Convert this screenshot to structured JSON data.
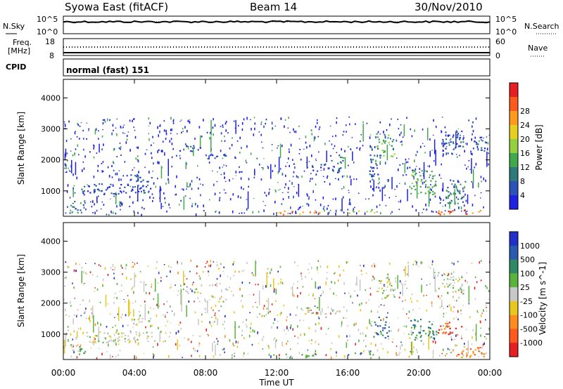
{
  "header": {
    "title": "Syowa East (fitACF)",
    "beam": "Beam 14",
    "date": "30/Nov/2010"
  },
  "strip_sky": {
    "left_label": "N.Sky",
    "right_label": "N.Search",
    "top_tick": "10^5",
    "bottom_tick": "10^0"
  },
  "strip_freq": {
    "left_label_1": "Freq.",
    "left_label_2": "[MHz]",
    "left_top": "18",
    "left_bottom": "8",
    "right_label": "Nave",
    "right_top": "60",
    "right_bottom": "0"
  },
  "cpid": {
    "label": "CPID",
    "mode": "normal (fast) 151"
  },
  "chart_data": [
    {
      "type": "heatmap",
      "panel": "power",
      "ylabel": "Slant Range [km]",
      "ylim": [
        180,
        4600
      ],
      "yticks": [
        "1000",
        "2000",
        "3000",
        "4000"
      ],
      "xlabel": "Time UT",
      "xticks": [
        "00:00",
        "04:00",
        "08:00",
        "12:00",
        "16:00",
        "20:00",
        "00:00"
      ],
      "xlim": [
        0,
        24
      ],
      "colorbar": {
        "label": "Power [dB]",
        "ticks": [
          "4",
          "8",
          "12",
          "16",
          "20",
          "24",
          "28"
        ],
        "colors": [
          "#1e22e0",
          "#2a52b8",
          "#2e7a7a",
          "#41a84c",
          "#94cf3d",
          "#e6cf1e",
          "#ff9a1e",
          "#ff5a1e",
          "#e62020"
        ]
      },
      "regions": [
        {
          "t0": 0.3,
          "t1": 1.2,
          "r0": 300,
          "r1": 700,
          "level": 2
        },
        {
          "t0": 1.0,
          "t1": 5.0,
          "r0": 900,
          "r1": 1250,
          "level": 1
        },
        {
          "t0": 3.5,
          "t1": 5.0,
          "r0": 1300,
          "r1": 1550,
          "level": 1
        },
        {
          "t0": 6.5,
          "t1": 7.6,
          "r0": 2300,
          "r1": 2500,
          "level": 1
        },
        {
          "t0": 8.0,
          "t1": 9.2,
          "r0": 2050,
          "r1": 2250,
          "level": 1
        },
        {
          "t0": 13.5,
          "t1": 15.6,
          "r0": 1650,
          "r1": 1900,
          "level": 1
        },
        {
          "t0": 15.0,
          "t1": 15.8,
          "r0": 1900,
          "r1": 2200,
          "level": 2
        },
        {
          "t0": 17.6,
          "t1": 18.6,
          "r0": 2100,
          "r1": 2900,
          "level": 3
        },
        {
          "t0": 17.2,
          "t1": 17.8,
          "r0": 1300,
          "r1": 2200,
          "level": 1
        },
        {
          "t0": 19.5,
          "t1": 21.0,
          "r0": 900,
          "r1": 1700,
          "level": 3
        },
        {
          "t0": 21.5,
          "t1": 22.6,
          "r0": 600,
          "r1": 1400,
          "level": 2
        },
        {
          "t0": 21.3,
          "t1": 22.5,
          "r0": 2200,
          "r1": 3000,
          "level": 1
        },
        {
          "t0": 23.0,
          "t1": 23.8,
          "r0": 2300,
          "r1": 2800,
          "level": 1
        },
        {
          "t0": 12.0,
          "t1": 14.5,
          "r0": 240,
          "r1": 380,
          "level": 6
        },
        {
          "t0": 21.0,
          "t1": 23.5,
          "r0": 240,
          "r1": 420,
          "level": 7
        },
        {
          "t0": 16.0,
          "t1": 17.5,
          "r0": 300,
          "r1": 430,
          "level": 4
        }
      ]
    },
    {
      "type": "heatmap",
      "panel": "velocity",
      "ylabel": "Slant Range [km]",
      "ylim": [
        180,
        4600
      ],
      "yticks": [
        "1000",
        "2000",
        "3000",
        "4000"
      ],
      "xlabel": "Time UT",
      "xticks": [
        "00:00",
        "04:00",
        "08:00",
        "12:00",
        "16:00",
        "20:00",
        "00:00"
      ],
      "xlim": [
        0,
        24
      ],
      "colorbar": {
        "label": "Velocity [m s^-1]",
        "ticks": [
          "1000",
          "500",
          "100",
          "25",
          "-25",
          "-100",
          "-500",
          "-1000"
        ],
        "colors": [
          "#2030c8",
          "#2a5ab0",
          "#2e8a64",
          "#5ab43c",
          "#c8c8c8",
          "#e6c81e",
          "#ff8c1e",
          "#ff5a1e",
          "#e62020"
        ]
      },
      "regions": [
        {
          "t0": 0.3,
          "t1": 1.2,
          "r0": 300,
          "r1": 700,
          "level": 3
        },
        {
          "t0": 1.0,
          "t1": 5.0,
          "r0": 750,
          "r1": 1100,
          "level": 4
        },
        {
          "t0": 3.5,
          "t1": 5.0,
          "r0": 1300,
          "r1": 1550,
          "level": 4
        },
        {
          "t0": 6.5,
          "t1": 7.6,
          "r0": 2300,
          "r1": 2500,
          "level": 4
        },
        {
          "t0": 8.0,
          "t1": 9.2,
          "r0": 2050,
          "r1": 2250,
          "level": 4
        },
        {
          "t0": 13.5,
          "t1": 15.6,
          "r0": 1650,
          "r1": 1900,
          "level": 4
        },
        {
          "t0": 17.6,
          "t1": 18.6,
          "r0": 2100,
          "r1": 2900,
          "level": 4
        },
        {
          "t0": 17.4,
          "t1": 18.3,
          "r0": 900,
          "r1": 1600,
          "level": 1
        },
        {
          "t0": 19.5,
          "t1": 21.0,
          "r0": 800,
          "r1": 1500,
          "level": 2
        },
        {
          "t0": 21.0,
          "t1": 22.5,
          "r0": 1000,
          "r1": 1400,
          "level": 7
        },
        {
          "t0": 21.5,
          "t1": 22.5,
          "r0": 2200,
          "r1": 3000,
          "level": 4
        },
        {
          "t0": 22.0,
          "t1": 23.7,
          "r0": 250,
          "r1": 700,
          "level": 6
        },
        {
          "t0": 16.0,
          "t1": 17.5,
          "r0": 350,
          "r1": 480,
          "level": 2
        },
        {
          "t0": 12.0,
          "t1": 14.5,
          "r0": 240,
          "r1": 380,
          "level": 3
        }
      ]
    }
  ]
}
